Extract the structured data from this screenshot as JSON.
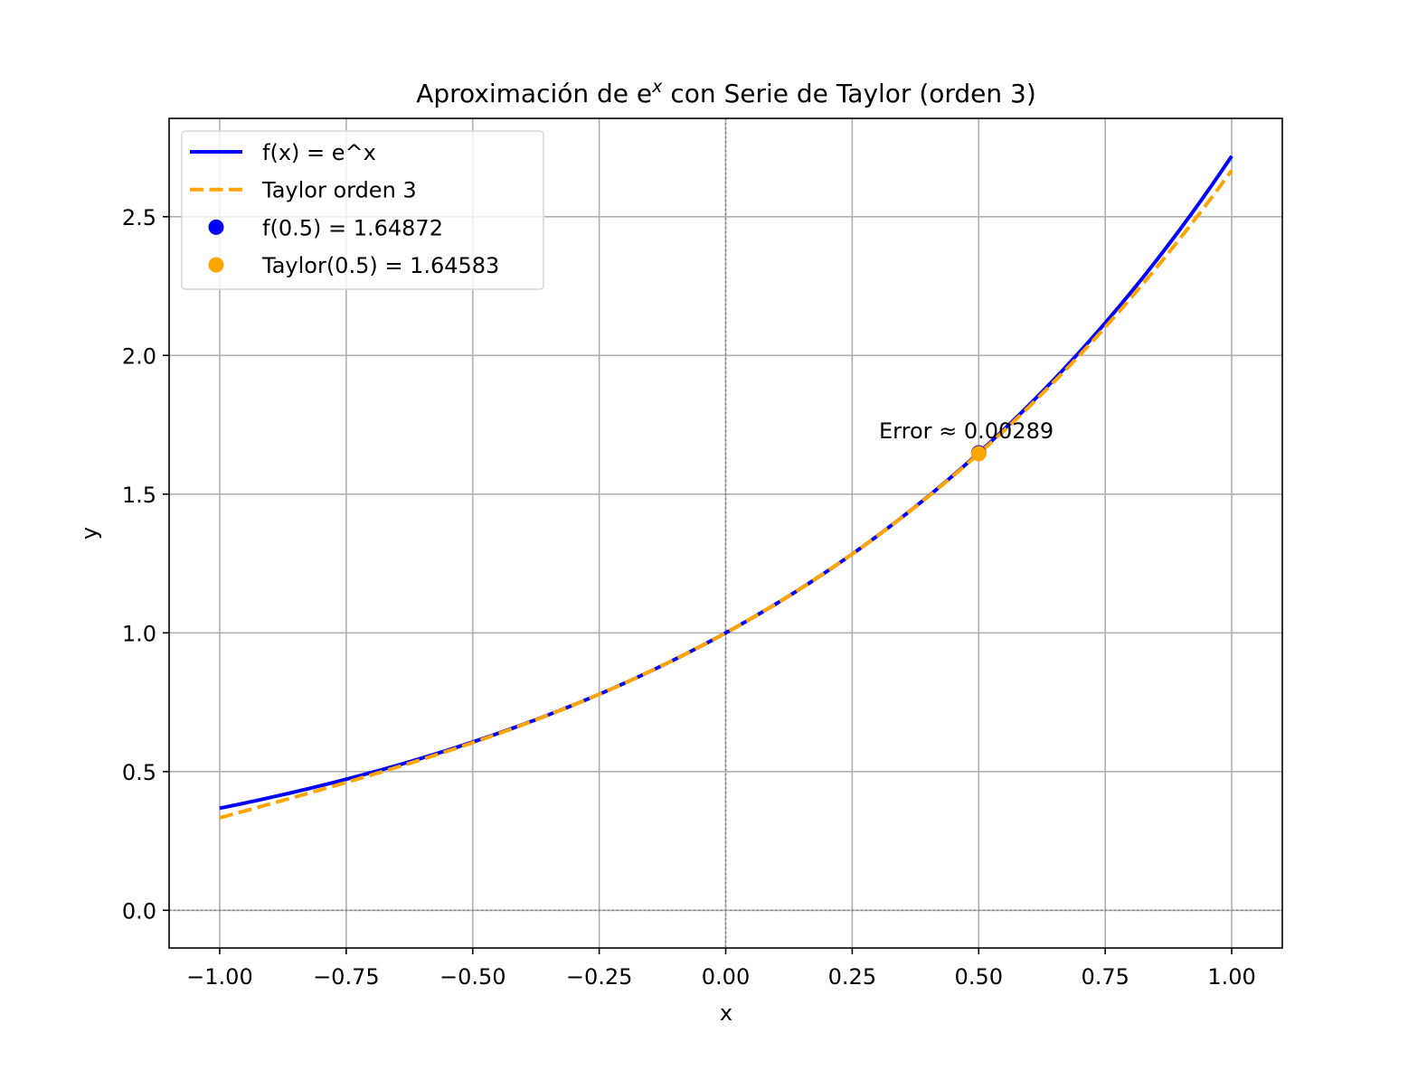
{
  "chart_data": {
    "type": "line",
    "title": "Aproximación de e",
    "title_sup": "x",
    "title_rest": " con Serie de Taylor (orden 3)",
    "xlabel": "x",
    "ylabel": "y",
    "xlim": [
      -1.1,
      1.1
    ],
    "ylim": [
      -0.1359,
      2.8543
    ],
    "grid": true,
    "legend_position": "top-left",
    "xticks": [
      -1.0,
      -0.75,
      -0.5,
      -0.25,
      0.0,
      0.25,
      0.5,
      0.75,
      1.0
    ],
    "xtick_labels": [
      "−1.00",
      "−0.75",
      "−0.50",
      "−0.25",
      "0.00",
      "0.25",
      "0.50",
      "0.75",
      "1.00"
    ],
    "yticks": [
      0.0,
      0.5,
      1.0,
      1.5,
      2.0,
      2.5
    ],
    "ytick_labels": [
      "0.0",
      "0.5",
      "1.0",
      "1.5",
      "2.0",
      "2.5"
    ],
    "series": [
      {
        "name": "f(x) = e^x",
        "kind": "line",
        "function": "exp",
        "x_range": [
          -1,
          1
        ],
        "color": "#0000ff",
        "style": "solid"
      },
      {
        "name": "Taylor orden 3",
        "kind": "line",
        "function": "1 + x + x^2/2 + x^3/6",
        "x_range": [
          -1,
          1
        ],
        "color": "#ffa500",
        "style": "dashed"
      },
      {
        "name": "f(0.5) = 1.64872",
        "kind": "point",
        "x": 0.5,
        "y": 1.64872,
        "color": "#0000ff"
      },
      {
        "name": "Taylor(0.5) = 1.64583",
        "kind": "point",
        "x": 0.5,
        "y": 1.64583,
        "color": "#ffa500"
      }
    ],
    "annotation": {
      "text": "Error ≈ 0.00289",
      "x": 0.5,
      "y": 1.64872
    },
    "reference_lines": {
      "x": 0,
      "y": 0
    }
  }
}
